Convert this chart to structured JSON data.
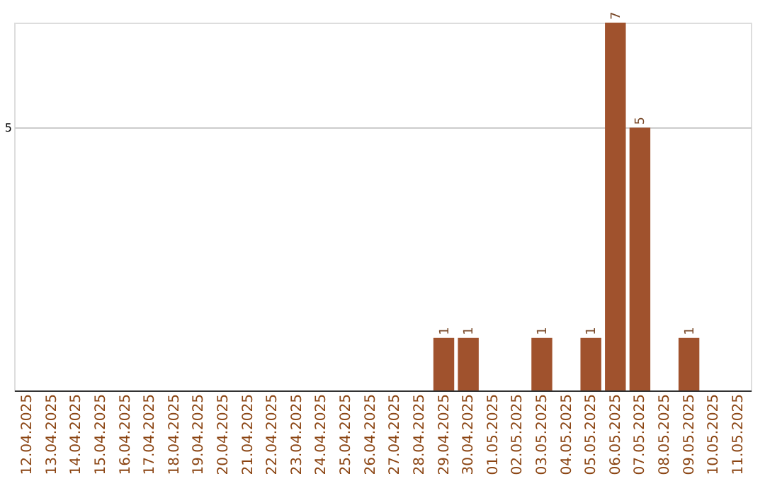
{
  "chart_data": {
    "type": "bar",
    "categories": [
      "12.04.2025",
      "13.04.2025",
      "14.04.2025",
      "15.04.2025",
      "16.04.2025",
      "17.04.2025",
      "18.04.2025",
      "19.04.2025",
      "20.04.2025",
      "21.04.2025",
      "22.04.2025",
      "23.04.2025",
      "24.04.2025",
      "25.04.2025",
      "26.04.2025",
      "27.04.2025",
      "28.04.2025",
      "29.04.2025",
      "30.04.2025",
      "01.05.2025",
      "02.05.2025",
      "03.05.2025",
      "04.05.2025",
      "05.05.2025",
      "06.05.2025",
      "07.05.2025",
      "08.05.2025",
      "09.05.2025",
      "10.05.2025",
      "11.05.2025"
    ],
    "values": [
      null,
      null,
      null,
      null,
      null,
      null,
      null,
      null,
      null,
      null,
      null,
      null,
      null,
      null,
      null,
      null,
      null,
      1,
      1,
      null,
      null,
      1,
      null,
      1,
      7,
      5,
      null,
      1,
      null,
      null
    ],
    "color": "#a0522d",
    "ylim": [
      0,
      7
    ],
    "yticks": [
      5
    ],
    "grid": "y",
    "data_labels": true
  }
}
